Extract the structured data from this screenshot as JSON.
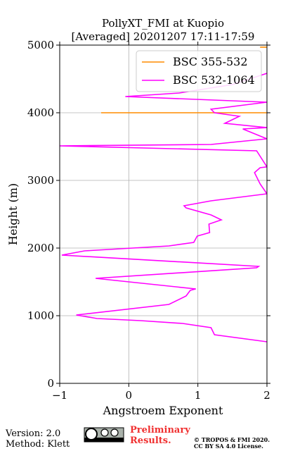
{
  "chart_data": {
    "type": "line",
    "title": [
      "PollyXT_FMI at Kuopio",
      "[Averaged] 20201207 17:11-17:59"
    ],
    "xlabel": "Angstroem Exponent",
    "ylabel": "Height (m)",
    "xlim": [
      -1,
      2
    ],
    "ylim": [
      0,
      5000
    ],
    "xticks": [
      {
        "value": -1,
        "label": "−1"
      },
      0,
      1,
      2
    ],
    "yticks": [
      0,
      1000,
      2000,
      3000,
      4000,
      5000
    ],
    "grid": true,
    "legend": "upper right",
    "series": [
      {
        "name": "BSC 355-532",
        "color": "#ff8c00",
        "values": [
          -0.4,
          2.0,
          null,
          1.9,
          2.0
        ],
        "heights": [
          4000,
          4000,
          null,
          4970,
          4970
        ]
      },
      {
        "name": "BSC 532-1064",
        "color": "#ff00ff",
        "values": [
          2.0,
          1.24,
          1.19,
          0.78,
          0.17,
          -0.46,
          -0.76,
          0.58,
          0.83,
          0.89,
          0.97,
          -0.48,
          1.85,
          1.88,
          -0.97,
          -0.64,
          0.58,
          0.94,
          0.99,
          1.17,
          1.16,
          1.34,
          1.19,
          0.83,
          0.8,
          1.19,
          2.0,
          1.9,
          1.82,
          1.9,
          2.0,
          1.85,
          -1.0,
          1.19,
          2.0,
          1.65,
          2.0,
          1.39,
          1.6,
          1.24,
          1.19,
          2.0,
          -0.05,
          0.73,
          1.5,
          2.0
        ],
        "heights": [
          615,
          719,
          823,
          885,
          927,
          958,
          1010,
          1167,
          1292,
          1375,
          1396,
          1552,
          1708,
          1729,
          1896,
          1958,
          2031,
          2083,
          2177,
          2229,
          2354,
          2417,
          2490,
          2594,
          2625,
          2698,
          2802,
          2950,
          3115,
          3188,
          3200,
          3438,
          3510,
          3531,
          3615,
          3760,
          3780,
          3844,
          3948,
          4000,
          4052,
          4156,
          4240,
          4292,
          4417,
          4583
        ]
      }
    ]
  },
  "footer": {
    "version": "Version: 2.0",
    "method": "Method: Klett",
    "preliminary": [
      "Preliminary",
      "Results."
    ],
    "copyright": [
      "© TROPOS & FMI 2020.",
      "CC BY SA 4.0 License."
    ]
  }
}
